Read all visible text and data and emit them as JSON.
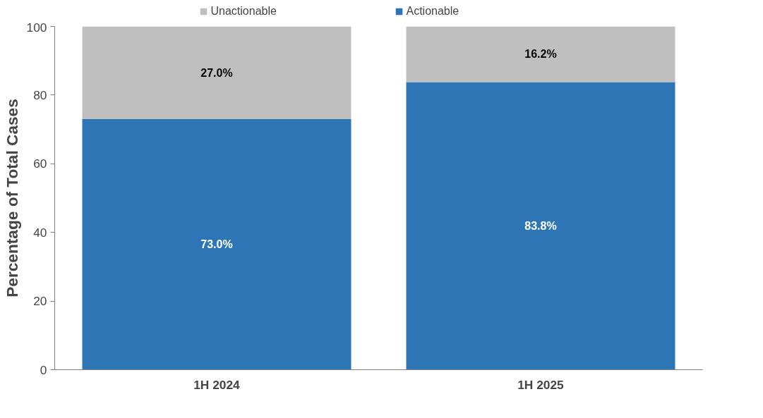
{
  "chart_data": {
    "type": "bar",
    "stacked": true,
    "ylabel": "Percentage of Total Cases",
    "categories": [
      "1H 2024",
      "1H 2025"
    ],
    "series": [
      {
        "name": "Actionable",
        "color": "#2e75b6",
        "values": [
          73.0,
          83.8
        ],
        "value_labels": [
          "73.0%",
          "83.8%"
        ]
      },
      {
        "name": "Unactionable",
        "color": "#bfbfbf",
        "values": [
          27.0,
          16.2
        ],
        "value_labels": [
          "27.0%",
          "16.2%"
        ]
      }
    ],
    "ylim": [
      0,
      100
    ],
    "yticks": [
      0,
      20,
      40,
      60,
      80,
      100
    ],
    "grid": false,
    "legend": "top"
  }
}
